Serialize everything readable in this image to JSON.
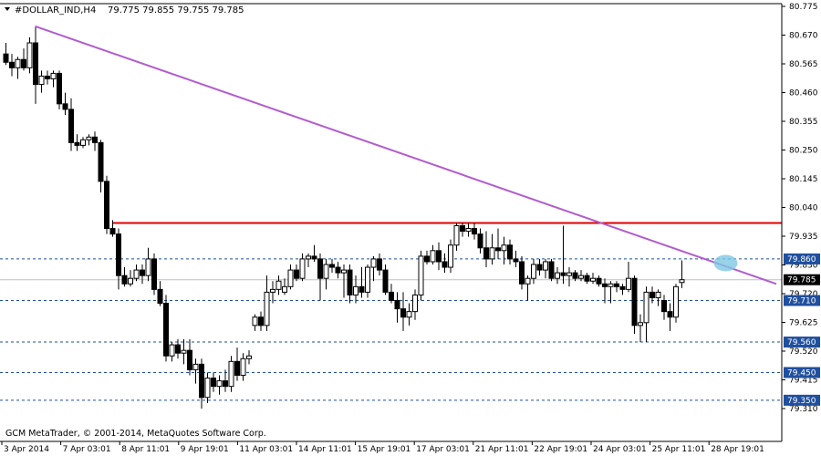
{
  "header": {
    "symbol_timeframe": "#DOLLAR_IND,H4",
    "ohlc": "79.775 79.855 79.755 79.785"
  },
  "footer": {
    "copyright": "GCM MetaTrader, © 2001-2014, MetaQuotes Software Corp."
  },
  "colors": {
    "background": "#ffffff",
    "candle_up_fill": "#ffffff",
    "candle_down_fill": "#000000",
    "candle_outline": "#000000",
    "trendline": "#b25ccf",
    "resistance": "#e00000",
    "level_dashed": "#1f4f9f",
    "price_badge": "#1f4f9f",
    "current_price_badge": "#000000",
    "highlight_ellipse": "#7ec8e3"
  },
  "chart_data": {
    "type": "candlestick",
    "timeframe": "H4",
    "x_tick_labels": [
      "3 Apr 2014",
      "7 Apr 03:01",
      "8 Apr 11:01",
      "9 Apr 19:01",
      "11 Apr 03:01",
      "14 Apr 11:01",
      "15 Apr 19:01",
      "17 Apr 03:01",
      "21 Apr 11:01",
      "22 Apr 19:01",
      "24 Apr 03:01",
      "25 Apr 11:01",
      "28 Apr 19:01"
    ],
    "y_tick_labels": [
      "80.775",
      "80.670",
      "80.565",
      "80.460",
      "80.355",
      "80.250",
      "80.145",
      "80.040",
      "79.935",
      "79.830",
      "79.720",
      "79.625",
      "79.520",
      "79.415",
      "79.310"
    ],
    "ylim": [
      79.31,
      80.775
    ],
    "grid": false,
    "current_price": 79.785,
    "levels": [
      {
        "kind": "resistance",
        "price": 79.99
      },
      {
        "kind": "dashed",
        "price": 79.86,
        "label": "79.860"
      },
      {
        "kind": "dashed",
        "price": 79.71,
        "label": "79.710"
      },
      {
        "kind": "dashed",
        "price": 79.56,
        "label": "79.560"
      },
      {
        "kind": "dashed",
        "price": 79.45,
        "label": "79.450"
      },
      {
        "kind": "dashed",
        "price": 79.35,
        "label": "79.350"
      }
    ],
    "trendline": {
      "from_bar": 5,
      "from_price": 80.7,
      "to_bar": 130,
      "to_price": 79.77
    },
    "highlight": {
      "bar": 121,
      "price": 79.845
    },
    "candles": [
      {
        "o": 80.6,
        "h": 80.64,
        "l": 80.56,
        "c": 80.57
      },
      {
        "o": 80.57,
        "h": 80.6,
        "l": 80.52,
        "c": 80.55
      },
      {
        "o": 80.55,
        "h": 80.59,
        "l": 80.51,
        "c": 80.58
      },
      {
        "o": 80.58,
        "h": 80.62,
        "l": 80.54,
        "c": 80.55
      },
      {
        "o": 80.55,
        "h": 80.66,
        "l": 80.53,
        "c": 80.64
      },
      {
        "o": 80.64,
        "h": 80.7,
        "l": 80.42,
        "c": 80.49
      },
      {
        "o": 80.49,
        "h": 80.54,
        "l": 80.46,
        "c": 80.52
      },
      {
        "o": 80.52,
        "h": 80.54,
        "l": 80.49,
        "c": 80.51
      },
      {
        "o": 80.51,
        "h": 80.54,
        "l": 80.48,
        "c": 80.53
      },
      {
        "o": 80.53,
        "h": 80.54,
        "l": 80.4,
        "c": 80.42
      },
      {
        "o": 80.42,
        "h": 80.46,
        "l": 80.38,
        "c": 80.4
      },
      {
        "o": 80.4,
        "h": 80.44,
        "l": 80.25,
        "c": 80.28
      },
      {
        "o": 80.28,
        "h": 80.31,
        "l": 80.25,
        "c": 80.27
      },
      {
        "o": 80.27,
        "h": 80.3,
        "l": 80.26,
        "c": 80.29
      },
      {
        "o": 80.29,
        "h": 80.31,
        "l": 80.27,
        "c": 80.3
      },
      {
        "o": 80.3,
        "h": 80.32,
        "l": 80.25,
        "c": 80.28
      },
      {
        "o": 80.28,
        "h": 80.29,
        "l": 80.1,
        "c": 80.14
      },
      {
        "o": 80.14,
        "h": 80.16,
        "l": 79.95,
        "c": 79.97
      },
      {
        "o": 79.97,
        "h": 80.0,
        "l": 79.94,
        "c": 79.95
      },
      {
        "o": 79.95,
        "h": 79.97,
        "l": 79.75,
        "c": 79.8
      },
      {
        "o": 79.8,
        "h": 79.83,
        "l": 79.76,
        "c": 79.77
      },
      {
        "o": 79.77,
        "h": 79.82,
        "l": 79.76,
        "c": 79.79
      },
      {
        "o": 79.79,
        "h": 79.84,
        "l": 79.78,
        "c": 79.82
      },
      {
        "o": 79.82,
        "h": 79.84,
        "l": 79.77,
        "c": 79.8
      },
      {
        "o": 79.8,
        "h": 79.9,
        "l": 79.78,
        "c": 79.86
      },
      {
        "o": 79.86,
        "h": 79.88,
        "l": 79.73,
        "c": 79.75
      },
      {
        "o": 79.75,
        "h": 79.78,
        "l": 79.69,
        "c": 79.7
      },
      {
        "o": 79.7,
        "h": 79.73,
        "l": 79.49,
        "c": 79.51
      },
      {
        "o": 79.51,
        "h": 79.56,
        "l": 79.49,
        "c": 79.55
      },
      {
        "o": 79.55,
        "h": 79.57,
        "l": 79.5,
        "c": 79.52
      },
      {
        "o": 79.52,
        "h": 79.57,
        "l": 79.48,
        "c": 79.53
      },
      {
        "o": 79.53,
        "h": 79.57,
        "l": 79.44,
        "c": 79.46
      },
      {
        "o": 79.46,
        "h": 79.5,
        "l": 79.41,
        "c": 79.48
      },
      {
        "o": 79.48,
        "h": 79.5,
        "l": 79.32,
        "c": 79.36
      },
      {
        "o": 79.36,
        "h": 79.45,
        "l": 79.34,
        "c": 79.43
      },
      {
        "o": 79.43,
        "h": 79.45,
        "l": 79.38,
        "c": 79.4
      },
      {
        "o": 79.4,
        "h": 79.44,
        "l": 79.37,
        "c": 79.42
      },
      {
        "o": 79.42,
        "h": 79.46,
        "l": 79.38,
        "c": 79.4
      },
      {
        "o": 79.4,
        "h": 79.51,
        "l": 79.38,
        "c": 79.49
      },
      {
        "o": 79.49,
        "h": 79.54,
        "l": 79.42,
        "c": 79.44
      },
      {
        "o": 79.44,
        "h": 79.52,
        "l": 79.42,
        "c": 79.5
      },
      {
        "o": 79.5,
        "h": 79.53,
        "l": 79.48,
        "c": 79.51
      },
      {
        "o": 79.62,
        "h": 79.66,
        "l": 79.6,
        "c": 79.65
      },
      {
        "o": 79.65,
        "h": 79.67,
        "l": 79.6,
        "c": 79.62
      },
      {
        "o": 79.62,
        "h": 79.8,
        "l": 79.6,
        "c": 79.74
      },
      {
        "o": 79.74,
        "h": 79.78,
        "l": 79.7,
        "c": 79.75
      },
      {
        "o": 79.75,
        "h": 79.8,
        "l": 79.73,
        "c": 79.78
      },
      {
        "o": 79.74,
        "h": 79.79,
        "l": 79.73,
        "c": 79.76
      },
      {
        "o": 79.76,
        "h": 79.84,
        "l": 79.75,
        "c": 79.82
      },
      {
        "o": 79.82,
        "h": 79.84,
        "l": 79.78,
        "c": 79.79
      },
      {
        "o": 79.79,
        "h": 79.88,
        "l": 79.78,
        "c": 79.86
      },
      {
        "o": 79.86,
        "h": 79.88,
        "l": 79.83,
        "c": 79.87
      },
      {
        "o": 79.87,
        "h": 79.91,
        "l": 79.85,
        "c": 79.86
      },
      {
        "o": 79.86,
        "h": 79.88,
        "l": 79.71,
        "c": 79.79
      },
      {
        "o": 79.79,
        "h": 79.86,
        "l": 79.75,
        "c": 79.84
      },
      {
        "o": 79.84,
        "h": 79.86,
        "l": 79.81,
        "c": 79.83
      },
      {
        "o": 79.83,
        "h": 79.85,
        "l": 79.79,
        "c": 79.81
      },
      {
        "o": 79.81,
        "h": 79.84,
        "l": 79.72,
        "c": 79.82
      },
      {
        "o": 79.82,
        "h": 79.84,
        "l": 79.7,
        "c": 79.73
      },
      {
        "o": 79.73,
        "h": 79.8,
        "l": 79.7,
        "c": 79.76
      },
      {
        "o": 79.76,
        "h": 79.83,
        "l": 79.72,
        "c": 79.74
      },
      {
        "o": 79.74,
        "h": 79.84,
        "l": 79.72,
        "c": 79.83
      },
      {
        "o": 79.83,
        "h": 79.87,
        "l": 79.78,
        "c": 79.86
      },
      {
        "o": 79.86,
        "h": 79.88,
        "l": 79.8,
        "c": 79.82
      },
      {
        "o": 79.82,
        "h": 79.84,
        "l": 79.73,
        "c": 79.74
      },
      {
        "o": 79.74,
        "h": 79.77,
        "l": 79.7,
        "c": 79.71
      },
      {
        "o": 79.71,
        "h": 79.74,
        "l": 79.63,
        "c": 79.68
      },
      {
        "o": 79.68,
        "h": 79.74,
        "l": 79.6,
        "c": 79.65
      },
      {
        "o": 79.65,
        "h": 79.7,
        "l": 79.62,
        "c": 79.67
      },
      {
        "o": 79.67,
        "h": 79.75,
        "l": 79.64,
        "c": 79.73
      },
      {
        "o": 79.73,
        "h": 79.89,
        "l": 79.71,
        "c": 79.87
      },
      {
        "o": 79.87,
        "h": 79.89,
        "l": 79.84,
        "c": 79.85
      },
      {
        "o": 79.85,
        "h": 79.91,
        "l": 79.84,
        "c": 79.89
      },
      {
        "o": 79.89,
        "h": 79.92,
        "l": 79.82,
        "c": 79.85
      },
      {
        "o": 79.85,
        "h": 79.88,
        "l": 79.81,
        "c": 79.83
      },
      {
        "o": 79.83,
        "h": 79.93,
        "l": 79.81,
        "c": 79.91
      },
      {
        "o": 79.91,
        "h": 79.99,
        "l": 79.89,
        "c": 79.98
      },
      {
        "o": 79.98,
        "h": 79.99,
        "l": 79.94,
        "c": 79.96
      },
      {
        "o": 79.96,
        "h": 79.99,
        "l": 79.94,
        "c": 79.97
      },
      {
        "o": 79.97,
        "h": 79.99,
        "l": 79.93,
        "c": 79.95
      },
      {
        "o": 79.95,
        "h": 79.97,
        "l": 79.88,
        "c": 79.9
      },
      {
        "o": 79.9,
        "h": 79.96,
        "l": 79.83,
        "c": 79.86
      },
      {
        "o": 79.86,
        "h": 79.95,
        "l": 79.84,
        "c": 79.9
      },
      {
        "o": 79.9,
        "h": 79.97,
        "l": 79.86,
        "c": 79.89
      },
      {
        "o": 79.89,
        "h": 79.94,
        "l": 79.84,
        "c": 79.91
      },
      {
        "o": 79.91,
        "h": 79.93,
        "l": 79.84,
        "c": 79.86
      },
      {
        "o": 79.86,
        "h": 79.89,
        "l": 79.83,
        "c": 79.85
      },
      {
        "o": 79.85,
        "h": 79.87,
        "l": 79.75,
        "c": 79.77
      },
      {
        "o": 79.77,
        "h": 79.8,
        "l": 79.71,
        "c": 79.79
      },
      {
        "o": 79.79,
        "h": 79.86,
        "l": 79.77,
        "c": 79.84
      },
      {
        "o": 79.84,
        "h": 79.86,
        "l": 79.8,
        "c": 79.82
      },
      {
        "o": 79.82,
        "h": 79.86,
        "l": 79.79,
        "c": 79.85
      },
      {
        "o": 79.85,
        "h": 79.86,
        "l": 79.78,
        "c": 79.79
      },
      {
        "o": 79.79,
        "h": 79.83,
        "l": 79.77,
        "c": 79.81
      },
      {
        "o": 79.81,
        "h": 79.98,
        "l": 79.77,
        "c": 79.8
      },
      {
        "o": 79.8,
        "h": 79.83,
        "l": 79.76,
        "c": 79.81
      },
      {
        "o": 79.81,
        "h": 79.82,
        "l": 79.78,
        "c": 79.79
      },
      {
        "o": 79.79,
        "h": 79.82,
        "l": 79.78,
        "c": 79.8
      },
      {
        "o": 79.8,
        "h": 79.81,
        "l": 79.77,
        "c": 79.78
      },
      {
        "o": 79.78,
        "h": 79.81,
        "l": 79.77,
        "c": 79.79
      },
      {
        "o": 79.79,
        "h": 79.8,
        "l": 79.76,
        "c": 79.77
      },
      {
        "o": 79.77,
        "h": 79.79,
        "l": 79.7,
        "c": 79.76
      },
      {
        "o": 79.76,
        "h": 79.78,
        "l": 79.7,
        "c": 79.77
      },
      {
        "o": 79.77,
        "h": 79.78,
        "l": 79.74,
        "c": 79.76
      },
      {
        "o": 79.76,
        "h": 79.77,
        "l": 79.73,
        "c": 79.75
      },
      {
        "o": 79.75,
        "h": 79.85,
        "l": 79.74,
        "c": 79.79
      },
      {
        "o": 79.79,
        "h": 79.8,
        "l": 79.59,
        "c": 79.62
      },
      {
        "o": 79.62,
        "h": 79.66,
        "l": 79.56,
        "c": 79.63
      },
      {
        "o": 79.63,
        "h": 79.76,
        "l": 79.56,
        "c": 79.74
      },
      {
        "o": 79.74,
        "h": 79.76,
        "l": 79.7,
        "c": 79.72
      },
      {
        "o": 79.72,
        "h": 79.75,
        "l": 79.69,
        "c": 79.74
      },
      {
        "o": 79.71,
        "h": 79.73,
        "l": 79.64,
        "c": 79.67
      },
      {
        "o": 79.67,
        "h": 79.7,
        "l": 79.6,
        "c": 79.65
      },
      {
        "o": 79.65,
        "h": 79.77,
        "l": 79.63,
        "c": 79.76
      },
      {
        "o": 79.775,
        "h": 79.855,
        "l": 79.755,
        "c": 79.785
      }
    ]
  }
}
